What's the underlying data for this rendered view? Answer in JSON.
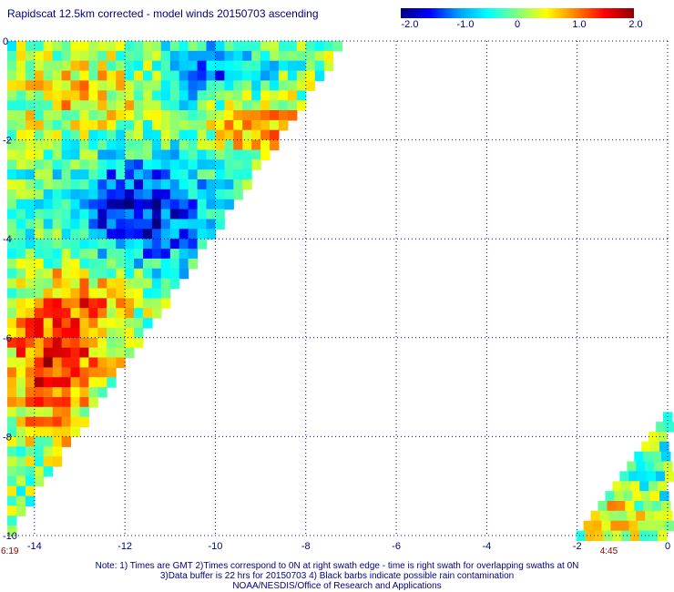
{
  "chart_data": {
    "type": "heatmap",
    "title": "Rapidscat 12.5km corrected - model winds 20150703 ascending",
    "xlim": [
      -14.6,
      0
    ],
    "ylim": [
      0,
      -10
    ],
    "x_ticks": [
      -14,
      -12,
      -10,
      -8,
      -6,
      -4,
      -2,
      0
    ],
    "y_ticks": [
      0,
      -2,
      -4,
      -6,
      -8,
      -10
    ],
    "grid": true,
    "colorbar": {
      "min": -2.0,
      "max": 2.0,
      "tick_labels": [
        "-2.0",
        "-1.0",
        "0",
        "1.0",
        "2.0"
      ],
      "colors": [
        "#000080",
        "#0000ff",
        "#00a0ff",
        "#00ffff",
        "#80ff80",
        "#ffff00",
        "#ff8000",
        "#ff0000",
        "#8b0000"
      ]
    },
    "swath_labels": [
      {
        "text": "6:19",
        "at_x": -14.6
      },
      {
        "text": "4:45",
        "at_x": -1.3
      }
    ],
    "notes": [
      "Note: 1) Times are GMT 2)Times correspond to 0N at right swath edge - time is right swath for overlapping swaths at 0N",
      "3)Data buffer is 22 hrs for 20150703 4) Black barbs indicate possible rain contamination",
      "NOAA/NESDIS/Office of Research and Applications"
    ]
  }
}
